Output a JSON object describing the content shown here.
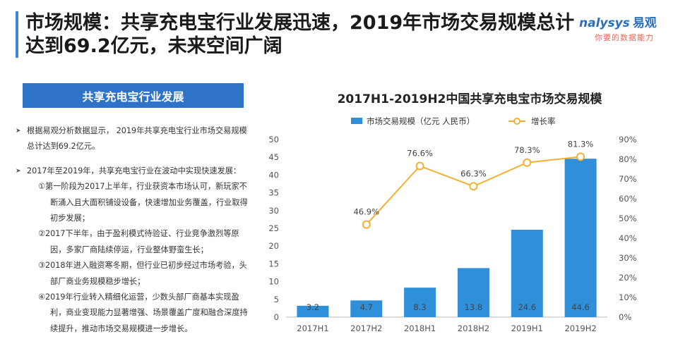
{
  "header": {
    "title": "市场规模：共享充电宝行业发展迅速，2019年市场交易规模总计达到69.2亿元，未来空间广阔"
  },
  "logo": {
    "brand": "nalysys",
    "brand_cn": "易观",
    "slogan": "你要的数据能力"
  },
  "section": {
    "heading": "共享充电宝行业发展",
    "bullets": [
      {
        "text": "根据易观分析数据显示， 2019年共享充电宝行业市场交易规模总计达到69.2亿元。",
        "subs": []
      },
      {
        "text": "2017年至2019年，共享充电宝行业在波动中实现快速发展：",
        "subs": [
          "①第一阶段为2017上半年，行业获资本市场认可，新玩家不断涌入且大面积铺设设备，快速增加业务覆盖，行业取得初步发展；",
          "②2017下半年，由于盈利模式待验证、行业竞争激烈等原因，多家厂商陆续停运，行业整体野蛮生长；",
          "③2018年进入融资寒冬期，但行业已初步经过市场考验，头部厂商业务规模稳步增长；",
          "④2019年行业转入精细化运营，少数头部厂商基本实现盈利，商业变现能力显著增强、场景覆盖广度和融合深度持续提升，推动市场交易规模进一步增长。"
        ]
      }
    ]
  },
  "chart_data": {
    "type": "bar",
    "title": "2017H1-2019H2中国共享充电宝市场交易规模",
    "categories": [
      "2017H1",
      "2017H2",
      "2018H1",
      "2018H2",
      "2019H1",
      "2019H2"
    ],
    "series": [
      {
        "name": "市场交易规模（亿元 人民币）",
        "kind": "bar",
        "axis": "left",
        "values": [
          3.2,
          4.7,
          8.3,
          13.8,
          24.6,
          44.6
        ],
        "labels": [
          "3.2",
          "4.7",
          "8.3",
          "13.8",
          "24.6",
          "44.6"
        ],
        "color": "#2f8fd8"
      },
      {
        "name": "增长率",
        "kind": "line",
        "axis": "right",
        "values": [
          null,
          46.9,
          76.6,
          66.3,
          78.3,
          81.3
        ],
        "labels": [
          "",
          "46.9%",
          "76.6%",
          "66.3%",
          "78.3%",
          "81.3%"
        ],
        "color": "#f2b134"
      }
    ],
    "ylim": [
      0,
      50
    ],
    "yticks": [
      0,
      5,
      10,
      15,
      20,
      25,
      30,
      35,
      40,
      45,
      50
    ],
    "y2lim": [
      0,
      90
    ],
    "y2ticks": [
      "0%",
      "10%",
      "20%",
      "30%",
      "40%",
      "50%",
      "60%",
      "70%",
      "80%",
      "90%"
    ],
    "legend": "top",
    "grid": false
  }
}
